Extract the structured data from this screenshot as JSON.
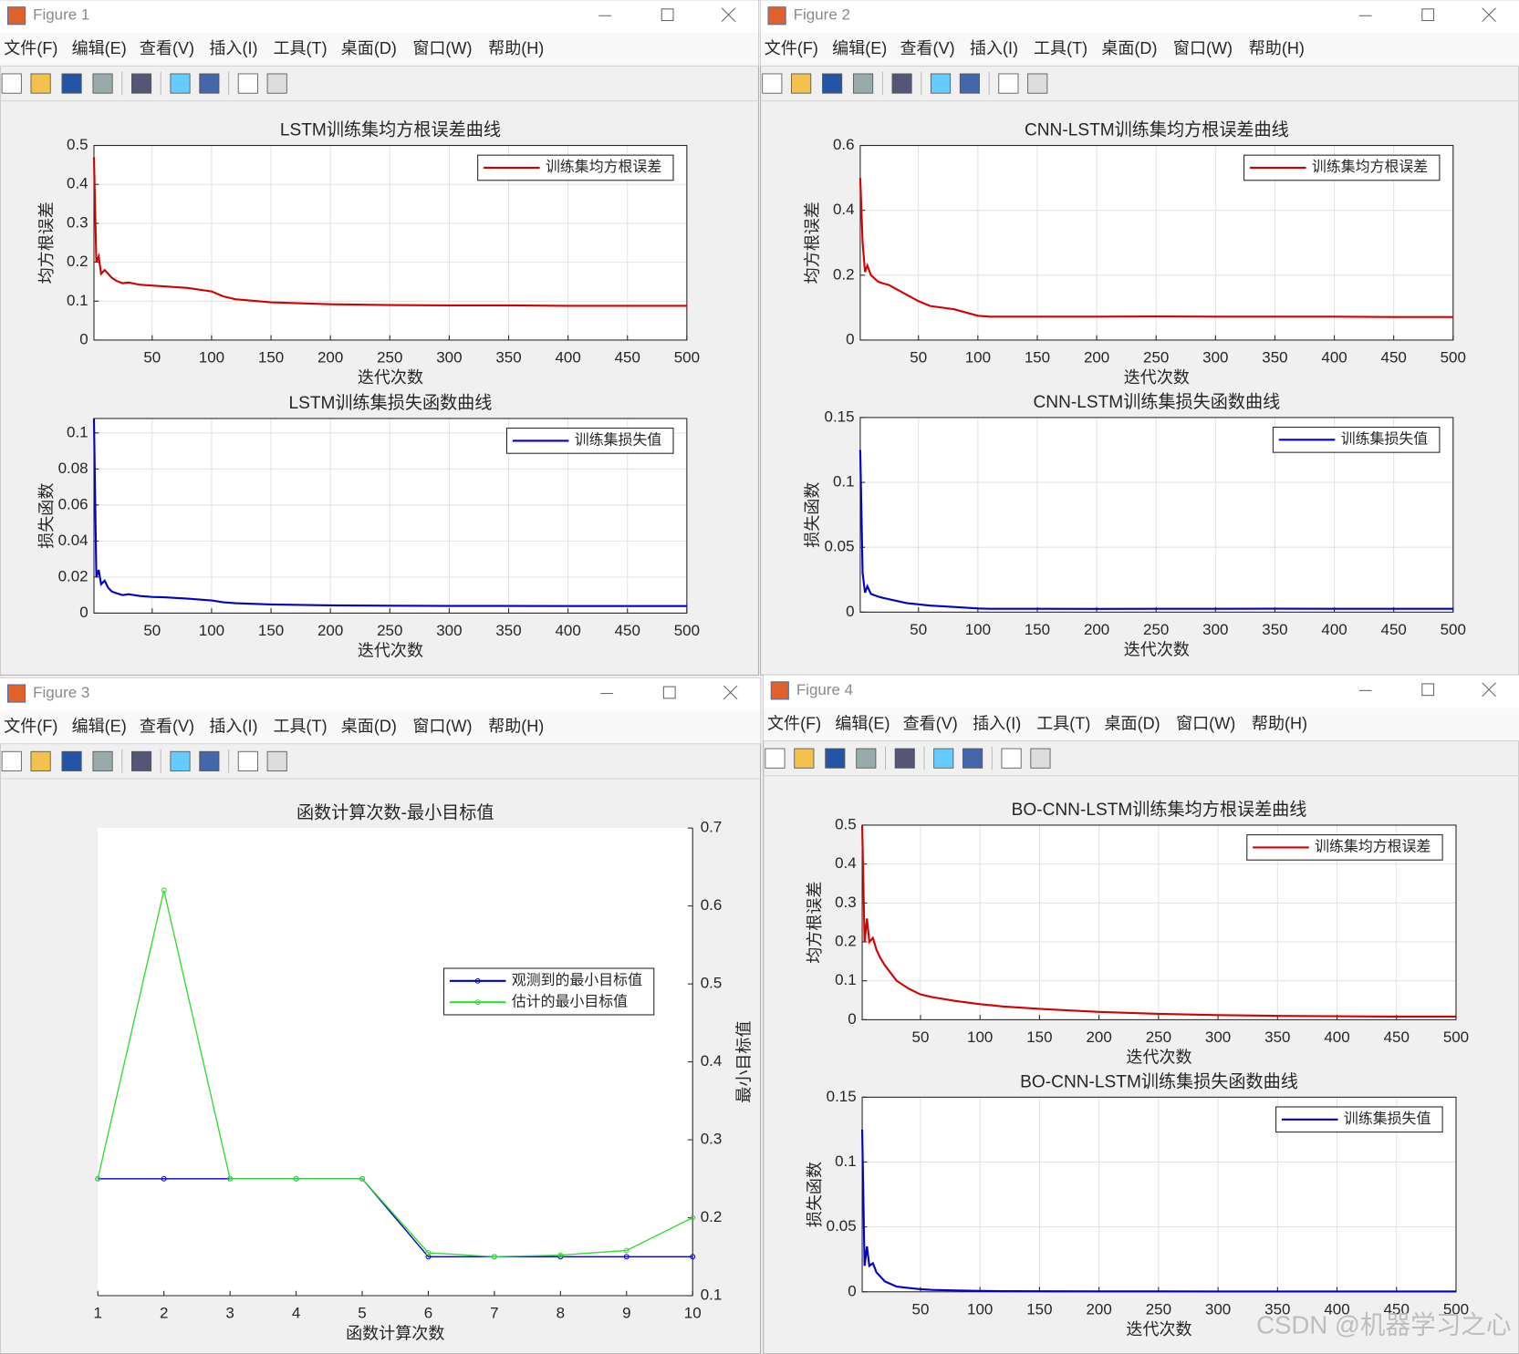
{
  "windows": [
    {
      "title": "Figure 1"
    },
    {
      "title": "Figure 2"
    },
    {
      "title": "Figure 3"
    },
    {
      "title": "Figure 4"
    }
  ],
  "menu": [
    "文件(F)",
    "编辑(E)",
    "查看(V)",
    "插入(I)",
    "工具(T)",
    "桌面(D)",
    "窗口(W)",
    "帮助(H)"
  ],
  "watermark": "CSDN @机器学习之心",
  "chart_data": [
    {
      "type": "line",
      "title": "LSTM训练集均方根误差曲线",
      "xlabel": "迭代次数",
      "ylabel": "均方根误差",
      "x": [
        1,
        3,
        5,
        7,
        10,
        13,
        16,
        20,
        25,
        30,
        40,
        50,
        60,
        80,
        100,
        110,
        120,
        150,
        200,
        250,
        300,
        350,
        400,
        450,
        500
      ],
      "series": [
        {
          "name": "训练集均方根误差",
          "color": "#d40000",
          "values": [
            0.47,
            0.2,
            0.215,
            0.17,
            0.18,
            0.17,
            0.16,
            0.152,
            0.146,
            0.148,
            0.142,
            0.14,
            0.138,
            0.134,
            0.125,
            0.112,
            0.105,
            0.097,
            0.092,
            0.09,
            0.089,
            0.089,
            0.088,
            0.088,
            0.088
          ]
        }
      ],
      "xlim": [
        1,
        500
      ],
      "xticks": [
        50,
        100,
        150,
        200,
        250,
        300,
        350,
        400,
        450,
        500
      ],
      "ylim": [
        0,
        0.5
      ],
      "yticks": [
        0,
        0.1,
        0.2,
        0.3,
        0.4,
        0.5
      ],
      "grid": true,
      "legend": "northeast"
    },
    {
      "type": "line",
      "title": "LSTM训练集损失函数曲线",
      "xlabel": "迭代次数",
      "ylabel": "损失函数",
      "x": [
        1,
        3,
        5,
        7,
        10,
        13,
        16,
        20,
        25,
        30,
        40,
        50,
        60,
        80,
        100,
        110,
        120,
        150,
        200,
        250,
        300,
        350,
        400,
        450,
        500
      ],
      "series": [
        {
          "name": "训练集损失值",
          "color": "#0000cc",
          "values": [
            0.108,
            0.02,
            0.024,
            0.016,
            0.018,
            0.014,
            0.012,
            0.011,
            0.01,
            0.0105,
            0.0095,
            0.009,
            0.0088,
            0.008,
            0.007,
            0.006,
            0.0055,
            0.0048,
            0.0043,
            0.0041,
            0.004,
            0.004,
            0.0039,
            0.0039,
            0.0039
          ]
        }
      ],
      "xlim": [
        1,
        500
      ],
      "xticks": [
        50,
        100,
        150,
        200,
        250,
        300,
        350,
        400,
        450,
        500
      ],
      "ylim": [
        0,
        0.108
      ],
      "yticks": [
        0,
        0.02,
        0.04,
        0.06,
        0.08,
        0.1
      ],
      "grid": true,
      "legend": "northeast"
    },
    {
      "type": "line",
      "title": "CNN-LSTM训练集均方根误差曲线",
      "xlabel": "迭代次数",
      "ylabel": "均方根误差",
      "x": [
        1,
        3,
        5,
        7,
        10,
        13,
        16,
        20,
        25,
        30,
        40,
        50,
        60,
        80,
        100,
        110,
        120,
        150,
        200,
        250,
        300,
        350,
        400,
        450,
        500
      ],
      "series": [
        {
          "name": "训练集均方根误差",
          "color": "#d40000",
          "values": [
            0.5,
            0.3,
            0.21,
            0.23,
            0.2,
            0.19,
            0.18,
            0.175,
            0.17,
            0.16,
            0.14,
            0.12,
            0.105,
            0.095,
            0.075,
            0.072,
            0.072,
            0.072,
            0.072,
            0.073,
            0.072,
            0.072,
            0.072,
            0.071,
            0.071
          ]
        }
      ],
      "xlim": [
        1,
        500
      ],
      "xticks": [
        50,
        100,
        150,
        200,
        250,
        300,
        350,
        400,
        450,
        500
      ],
      "ylim": [
        0,
        0.6
      ],
      "yticks": [
        0,
        0.2,
        0.4,
        0.6
      ],
      "grid": true,
      "legend": "northeast"
    },
    {
      "type": "line",
      "title": "CNN-LSTM训练集损失函数曲线",
      "xlabel": "迭代次数",
      "ylabel": "损失函数",
      "x": [
        1,
        3,
        5,
        7,
        10,
        13,
        16,
        20,
        25,
        30,
        40,
        50,
        60,
        80,
        100,
        110,
        120,
        150,
        200,
        250,
        300,
        350,
        400,
        450,
        500
      ],
      "series": [
        {
          "name": "训练集损失值",
          "color": "#0000cc",
          "values": [
            0.125,
            0.03,
            0.015,
            0.02,
            0.014,
            0.013,
            0.012,
            0.011,
            0.01,
            0.009,
            0.007,
            0.006,
            0.005,
            0.004,
            0.0028,
            0.0026,
            0.0026,
            0.0026,
            0.0025,
            0.0026,
            0.0026,
            0.0027,
            0.0026,
            0.0026,
            0.0026
          ]
        }
      ],
      "xlim": [
        1,
        500
      ],
      "xticks": [
        50,
        100,
        150,
        200,
        250,
        300,
        350,
        400,
        450,
        500
      ],
      "ylim": [
        0,
        0.15
      ],
      "yticks": [
        0,
        0.05,
        0.1,
        0.15
      ],
      "grid": true,
      "legend": "northeast"
    },
    {
      "type": "line",
      "title": "函数计算次数-最小目标值",
      "xlabel": "函数计算次数",
      "ylabel": "最小目标值",
      "x": [
        1,
        2,
        3,
        4,
        5,
        6,
        7,
        8,
        9,
        10
      ],
      "series": [
        {
          "name": "观测到的最小目标值",
          "color": "#0000cc",
          "values": [
            0.25,
            0.25,
            0.25,
            0.25,
            0.25,
            0.15,
            0.15,
            0.15,
            0.15,
            0.15
          ]
        },
        {
          "name": "估计的最小目标值",
          "color": "#33dd33",
          "values": [
            0.25,
            0.62,
            0.25,
            0.25,
            0.25,
            0.155,
            0.15,
            0.152,
            0.158,
            0.2
          ]
        }
      ],
      "xlim": [
        1,
        10
      ],
      "xticks": [
        1,
        2,
        3,
        4,
        5,
        6,
        7,
        8,
        9,
        10
      ],
      "ylim": [
        0.1,
        0.7
      ],
      "yticks": [
        0.1,
        0.2,
        0.3,
        0.4,
        0.5,
        0.6,
        0.7
      ],
      "grid": false,
      "markers": true,
      "y_axis_location": "right",
      "legend": "east"
    },
    {
      "type": "line",
      "title": "BO-CNN-LSTM训练集均方根误差曲线",
      "xlabel": "迭代次数",
      "ylabel": "均方根误差",
      "x": [
        1,
        3,
        5,
        7,
        10,
        13,
        16,
        20,
        25,
        30,
        40,
        50,
        60,
        80,
        100,
        110,
        120,
        150,
        200,
        250,
        300,
        350,
        400,
        450,
        500
      ],
      "series": [
        {
          "name": "训练集均方根误差",
          "color": "#d40000",
          "values": [
            0.5,
            0.2,
            0.26,
            0.2,
            0.21,
            0.18,
            0.16,
            0.14,
            0.12,
            0.1,
            0.08,
            0.065,
            0.058,
            0.048,
            0.04,
            0.037,
            0.034,
            0.028,
            0.02,
            0.015,
            0.012,
            0.01,
            0.009,
            0.008,
            0.008
          ]
        }
      ],
      "xlim": [
        1,
        500
      ],
      "xticks": [
        50,
        100,
        150,
        200,
        250,
        300,
        350,
        400,
        450,
        500
      ],
      "ylim": [
        0,
        0.5
      ],
      "yticks": [
        0,
        0.1,
        0.2,
        0.3,
        0.4,
        0.5
      ],
      "grid": true,
      "legend": "northeast"
    },
    {
      "type": "line",
      "title": "BO-CNN-LSTM训练集损失函数曲线",
      "xlabel": "迭代次数",
      "ylabel": "损失函数",
      "x": [
        1,
        3,
        5,
        7,
        10,
        13,
        16,
        20,
        25,
        30,
        40,
        50,
        60,
        80,
        100,
        110,
        120,
        150,
        200,
        250,
        300,
        350,
        400,
        450,
        500
      ],
      "series": [
        {
          "name": "训练集损失值",
          "color": "#0000cc",
          "values": [
            0.125,
            0.02,
            0.035,
            0.02,
            0.022,
            0.015,
            0.012,
            0.008,
            0.006,
            0.004,
            0.003,
            0.002,
            0.0015,
            0.001,
            0.0007,
            0.0006,
            0.0005,
            0.0004,
            0.0003,
            0.0003,
            0.0002,
            0.0002,
            0.0002,
            0.0002,
            0.0002
          ]
        }
      ],
      "xlim": [
        1,
        500
      ],
      "xticks": [
        50,
        100,
        150,
        200,
        250,
        300,
        350,
        400,
        450,
        500
      ],
      "ylim": [
        0,
        0.15
      ],
      "yticks": [
        0,
        0.05,
        0.1,
        0.15
      ],
      "grid": true,
      "legend": "northeast"
    }
  ]
}
